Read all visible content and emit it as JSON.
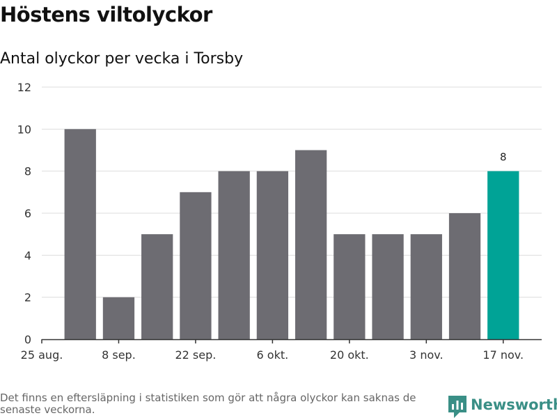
{
  "title": "Höstens viltolyckor",
  "subtitle": "Antal olyckor per vecka i Torsby",
  "footnote": "Det finns en eftersläpning i statistiken som gör att några olyckor kan saknas de senaste veckorna.",
  "brand": {
    "name": "Newsworthy",
    "icon": "newsworthy-logo-icon",
    "color": "#3a8f86"
  },
  "chart_data": {
    "type": "bar",
    "title": "Antal olyckor per vecka i Torsby",
    "xlabel": "",
    "ylabel": "",
    "x": [
      "2019-09-01",
      "2019-09-08",
      "2019-09-15",
      "2019-09-22",
      "2019-09-29",
      "2019-10-06",
      "2019-10-13",
      "2019-10-20",
      "2019-10-27",
      "2019-11-03",
      "2019-11-10",
      "2019-11-17"
    ],
    "values": [
      10,
      2,
      5,
      7,
      8,
      8,
      9,
      5,
      5,
      5,
      6,
      8
    ],
    "ylim": [
      0,
      12
    ],
    "yticks": [
      "0",
      "2",
      "4",
      "6",
      "8",
      "10",
      "12"
    ],
    "xlim": [
      "2019-08-25",
      "2019-11-24"
    ],
    "xticks": [
      {
        "date": "2019-08-25",
        "label": "25 aug."
      },
      {
        "date": "2019-09-08",
        "label": "8 sep."
      },
      {
        "date": "2019-09-22",
        "label": "22 sep."
      },
      {
        "date": "2019-10-06",
        "label": "6 okt."
      },
      {
        "date": "2019-10-20",
        "label": "20 okt."
      },
      {
        "date": "2019-11-03",
        "label": "3 nov."
      },
      {
        "date": "2019-11-17",
        "label": "17 nov."
      }
    ],
    "highlight": {
      "date": "2019-11-17",
      "label": "8"
    },
    "colors": {
      "bar": "#6d6c72",
      "highlight": "#00a396",
      "grid": "#dddddd",
      "axis": "#333333"
    },
    "grid": true
  }
}
